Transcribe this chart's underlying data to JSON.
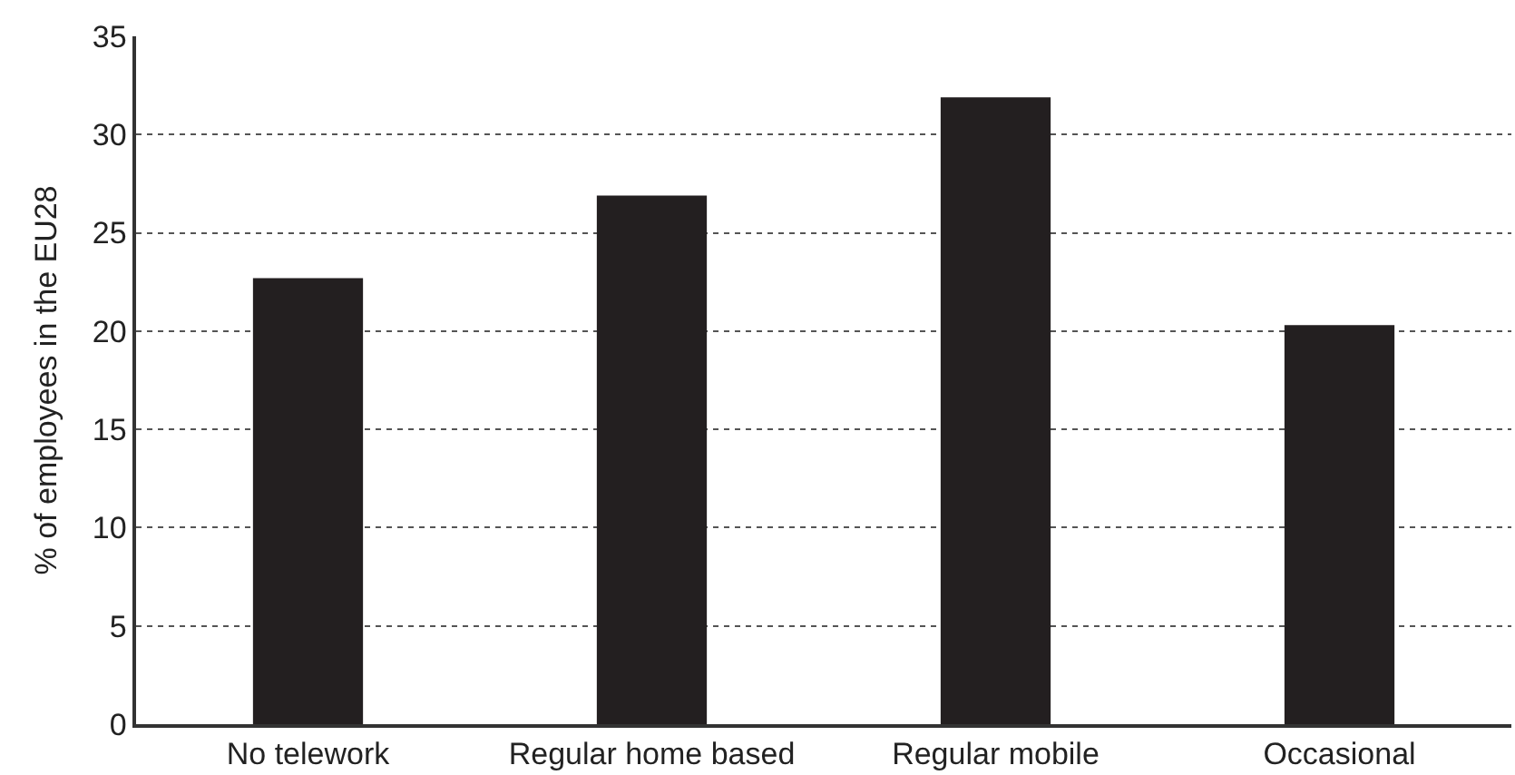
{
  "chart_data": {
    "type": "bar",
    "ylabel": "% of employees in the EU28",
    "categories": [
      "No telework",
      "Regular home based",
      "Regular mobile",
      "Occasional"
    ],
    "values": [
      22.7,
      26.9,
      31.9,
      20.3
    ],
    "color": "#231f20",
    "ylim": [
      0,
      35
    ],
    "yticks": [
      0,
      5,
      10,
      15,
      20,
      25,
      30,
      35
    ],
    "grid": "y",
    "legend": false
  }
}
